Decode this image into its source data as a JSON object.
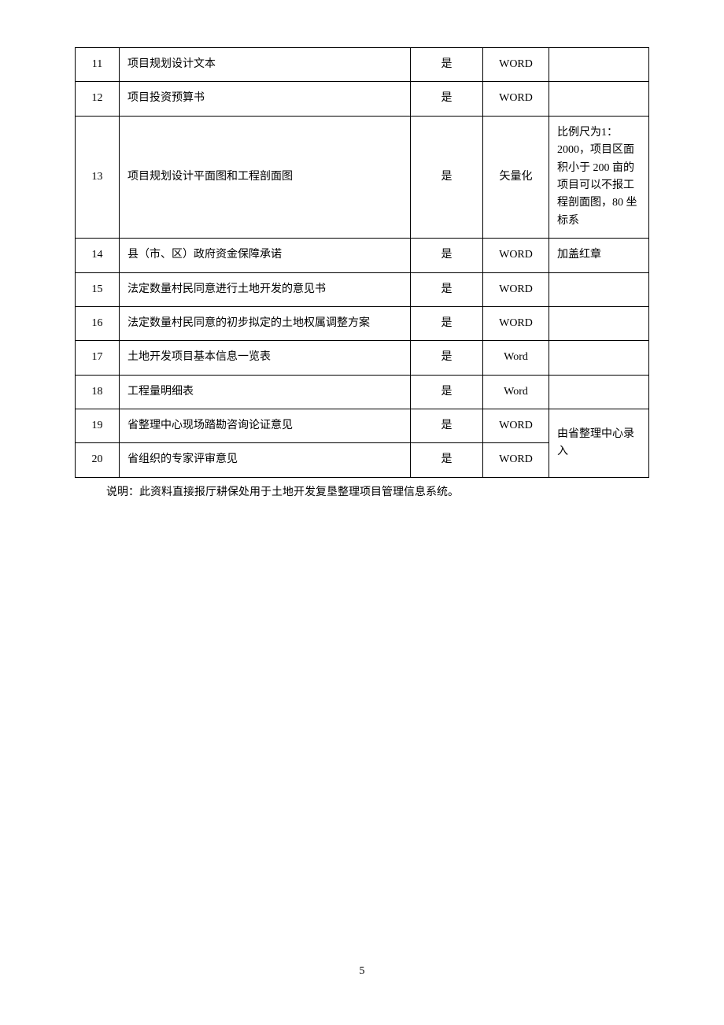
{
  "table": {
    "columns": [
      "num",
      "name",
      "required",
      "format",
      "note"
    ],
    "rows": [
      {
        "num": "11",
        "name": "项目规划设计文本",
        "required": "是",
        "format": "WORD",
        "note": ""
      },
      {
        "num": "12",
        "name": "项目投资预算书",
        "required": "是",
        "format": "WORD",
        "note": ""
      },
      {
        "num": "13",
        "name": "项目规划设计平面图和工程剖面图",
        "required": "是",
        "format": "矢量化",
        "note": "比例尺为1：2000，项目区面积小于 200 亩的项目可以不报工程剖面图，80 坐标系"
      },
      {
        "num": "14",
        "name": "县（市、区）政府资金保障承诺",
        "required": "是",
        "format": "WORD",
        "note": "加盖红章"
      },
      {
        "num": "15",
        "name": "法定数量村民同意进行土地开发的意见书",
        "required": "是",
        "format": "WORD",
        "note": ""
      },
      {
        "num": "16",
        "name": "法定数量村民同意的初步拟定的土地权属调整方案",
        "required": "是",
        "format": "WORD",
        "note": ""
      },
      {
        "num": "17",
        "name": "土地开发项目基本信息一览表",
        "required": "是",
        "format": "Word",
        "note": ""
      },
      {
        "num": "18",
        "name": "工程量明细表",
        "required": "是",
        "format": "Word",
        "note": ""
      },
      {
        "num": "19",
        "name": "省整理中心现场踏勘咨询论证意见",
        "required": "是",
        "format": "WORD",
        "note": ""
      },
      {
        "num": "20",
        "name": "省组织的专家评审意见",
        "required": "是",
        "format": "WORD",
        "note": ""
      }
    ],
    "merged_note_last_two": "由省整理中心录入"
  },
  "caption": "说明：此资料直接报厅耕保处用于土地开发复垦整理项目管理信息系统。",
  "page_number": "5"
}
